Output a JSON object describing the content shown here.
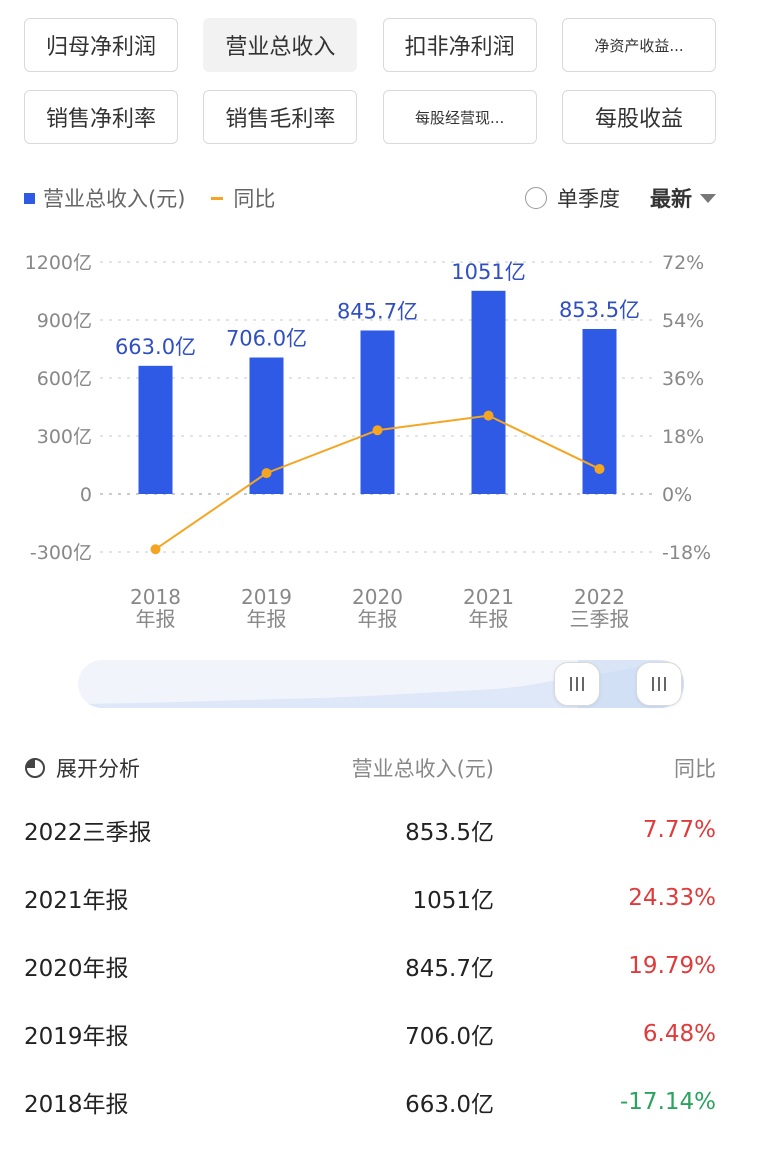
{
  "tabs": [
    [
      "归母净利润",
      "营业总收入",
      "扣非净利润",
      "净资产收益..."
    ],
    [
      "销售净利率",
      "销售毛利率",
      "每股经营现...",
      "每股收益"
    ]
  ],
  "active_tab": "营业总收入",
  "legend": {
    "bar_label": "营业总收入(元)",
    "line_label": "同比"
  },
  "controls": {
    "single_quarter": "单季度",
    "sort": "最新"
  },
  "colors": {
    "bar": "#2f5ae6",
    "line": "#f4a623",
    "positive": "#e03a3a",
    "negative": "#2aa35f"
  },
  "chart_data": {
    "type": "bar",
    "categories": [
      [
        "2018",
        "年报"
      ],
      [
        "2019",
        "年报"
      ],
      [
        "2020",
        "年报"
      ],
      [
        "2021",
        "年报"
      ],
      [
        "2022",
        "三季报"
      ]
    ],
    "series": [
      {
        "name": "营业总收入(元)",
        "type": "bar",
        "axis": "left",
        "values": [
          663.0,
          706.0,
          845.7,
          1051,
          853.5
        ],
        "labels": [
          "663.0亿",
          "706.0亿",
          "845.7亿",
          "1051亿",
          "853.5亿"
        ]
      },
      {
        "name": "同比",
        "type": "line",
        "axis": "right",
        "values": [
          -17.14,
          6.48,
          19.79,
          24.33,
          7.77
        ]
      }
    ],
    "left_axis": {
      "min": -300,
      "max": 1200,
      "ticks": [
        1200,
        900,
        600,
        300,
        0,
        -300
      ],
      "tick_labels": [
        "1200亿",
        "900亿",
        "600亿",
        "300亿",
        "0",
        "-300亿"
      ]
    },
    "right_axis": {
      "min": -18,
      "max": 72,
      "ticks": [
        72,
        54,
        36,
        18,
        0,
        -18
      ],
      "tick_labels": [
        "72%",
        "54%",
        "36%",
        "18%",
        "0%",
        "-18%"
      ]
    },
    "grid": true
  },
  "table": {
    "headers": {
      "expand": "展开分析",
      "revenue": "营业总收入(元)",
      "yoy": "同比"
    },
    "rows": [
      {
        "period": "2022三季报",
        "revenue": "853.5亿",
        "yoy": "7.77%",
        "sign": "pos"
      },
      {
        "period": "2021年报",
        "revenue": "1051亿",
        "yoy": "24.33%",
        "sign": "pos"
      },
      {
        "period": "2020年报",
        "revenue": "845.7亿",
        "yoy": "19.79%",
        "sign": "pos"
      },
      {
        "period": "2019年报",
        "revenue": "706.0亿",
        "yoy": "6.48%",
        "sign": "pos"
      },
      {
        "period": "2018年报",
        "revenue": "663.0亿",
        "yoy": "-17.14%",
        "sign": "neg"
      }
    ]
  }
}
